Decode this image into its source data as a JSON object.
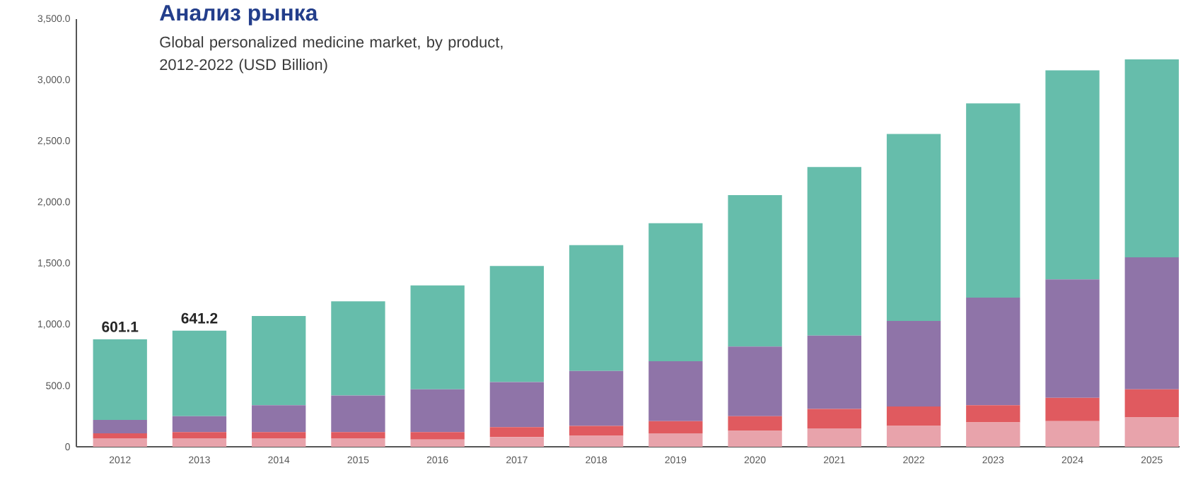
{
  "chart_data": {
    "type": "bar",
    "title": "Анализ рынка",
    "subtitle": "Global personalized medicine market, by product, 2012-2022 (USD Billion)",
    "categories": [
      "2012",
      "2013",
      "2014",
      "2015",
      "2016",
      "2017",
      "2018",
      "2019",
      "2020",
      "2021",
      "2022",
      "2023",
      "2024",
      "2025"
    ],
    "stacked": true,
    "series": [
      {
        "color": "#e8a3ab",
        "values": [
          70,
          70,
          70,
          70,
          60,
          80,
          90,
          110,
          130,
          150,
          170,
          200,
          210,
          240
        ]
      },
      {
        "color": "#e05a5f",
        "values": [
          40,
          50,
          50,
          50,
          60,
          80,
          80,
          100,
          120,
          160,
          160,
          140,
          190,
          230
        ]
      },
      {
        "color": "#8f74a8",
        "values": [
          110,
          130,
          220,
          300,
          350,
          370,
          450,
          490,
          570,
          600,
          700,
          880,
          970,
          1080
        ]
      },
      {
        "color": "#66bdab",
        "values": [
          660,
          700,
          730,
          770,
          850,
          950,
          1030,
          1130,
          1240,
          1380,
          1530,
          1590,
          1710,
          1620
        ]
      }
    ],
    "ylim": [
      0,
      3500
    ],
    "yticks": [
      0,
      {
        "value": 500,
        "label": "500.0"
      },
      {
        "value": 1000,
        "label": "1,000.0"
      },
      {
        "value": 1500,
        "label": "1,500.0"
      },
      {
        "value": 2000,
        "label": "2,000.0"
      },
      {
        "value": 2500,
        "label": "2,500.0"
      },
      {
        "value": 3000,
        "label": "3,000.0"
      },
      {
        "value": 3500,
        "label": "3,500.0"
      }
    ],
    "annotations": [
      {
        "text": "601.1",
        "x": "2012",
        "y": 880
      },
      {
        "text": "641.2",
        "x": "2013",
        "y": 950
      }
    ]
  }
}
